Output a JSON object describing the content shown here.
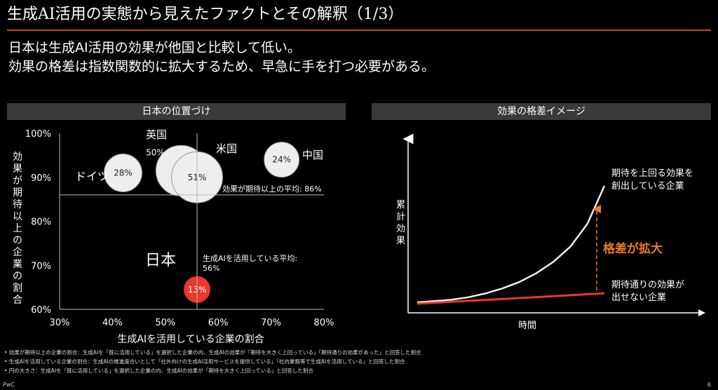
{
  "title": "生成AI活用の実態から見えたファクトとその解釈（1/3）",
  "subtitle_lines": [
    "日本は生成AI活用の効果が他国と比較して低い。",
    "効果の格差は指数関数的に拡大するため、早急に手を打つ必要がある。"
  ],
  "left_panel": {
    "header": "日本の位置づけ",
    "ylabel": "効果が期待以上の企業の割合",
    "xlabel": "生成AIを活用している企業の割合",
    "hline_label": "効果が期待以上の平均: 86%",
    "vline_label_1": "生成AIを活用している平均:",
    "vline_label_2": "56%"
  },
  "right_panel": {
    "header": "効果の格差イメージ",
    "ylabel": "累計効果",
    "xlabel": "時間",
    "upper_label_1": "期待を上回る効果を",
    "upper_label_2": "創出している企業",
    "gap_label": "格差が拡大",
    "lower_label_1": "期待通りの効果が",
    "lower_label_2": "出せない企業"
  },
  "footnotes": [
    "• 効果が期待以上の企業の割合：生成AIを「既に活用している」を選択した企業の内、生成AIの効果が「期待を大きく上回っている」「期待通りの効果があった」と回答した割合",
    "• 生成AIを活用している企業の割合：生成AIの推進度合いとして「社外向けの生成AI活用サービスを提供している」「社内業務等で生成AIを活用している」と回答した割合",
    "• 円の大きさ：生成AIを「既に活用している」を選択した企業の内、生成AIの効果が「期待を大きく上回っている」と回答した割合"
  ],
  "footer_brand": "PwC",
  "page_number": "6",
  "colors": {
    "accent": "#c5461b",
    "japan_red": "#e8392b",
    "gap_orange": "#f07b21",
    "bubble": "#eeeeee"
  },
  "chart_data": [
    {
      "type": "scatter",
      "title": "日本の位置づけ",
      "xlabel": "生成AIを活用している企業の割合",
      "ylabel": "効果が期待以上の企業の割合",
      "xlim": [
        30,
        80
      ],
      "ylim": [
        60,
        100
      ],
      "x_ticks": [
        "30%",
        "40%",
        "50%",
        "60%",
        "70%",
        "80%"
      ],
      "y_ticks": [
        "60%",
        "70%",
        "80%",
        "90%",
        "100%"
      ],
      "reference_lines": {
        "x_avg": 56,
        "y_avg": 86
      },
      "points": [
        {
          "country": "ドイツ",
          "x": 42,
          "y": 91,
          "size": 28,
          "label": "28%",
          "color": "#eeeeee"
        },
        {
          "country": "英国",
          "x": 53,
          "y": 91.5,
          "size": 50,
          "label": "50%",
          "color": "#eeeeee"
        },
        {
          "country": "米国",
          "x": 56,
          "y": 90,
          "size": 51,
          "label": "51%",
          "color": "#eeeeee"
        },
        {
          "country": "中国",
          "x": 72,
          "y": 94,
          "size": 24,
          "label": "24%",
          "color": "#eeeeee"
        },
        {
          "country": "日本",
          "x": 56,
          "y": 64.5,
          "size": 13,
          "label": "13%",
          "color": "#e8392b"
        }
      ]
    },
    {
      "type": "line",
      "title": "効果の格差イメージ",
      "xlabel": "時間",
      "ylabel": "累計効果",
      "series": [
        {
          "name": "期待を上回る効果を創出している企業",
          "values": [
            0,
            0.5,
            1,
            2,
            3.5,
            5.5,
            8,
            11.5,
            16,
            22,
            31,
            46
          ],
          "color": "#eeeeee"
        },
        {
          "name": "期待通りの効果が出せない企業",
          "values": [
            0,
            0.3,
            0.6,
            0.9,
            1.2,
            1.5,
            1.8,
            2.1,
            2.4,
            2.7,
            3.0,
            3.3
          ],
          "color": "#e8392b"
        }
      ]
    }
  ]
}
